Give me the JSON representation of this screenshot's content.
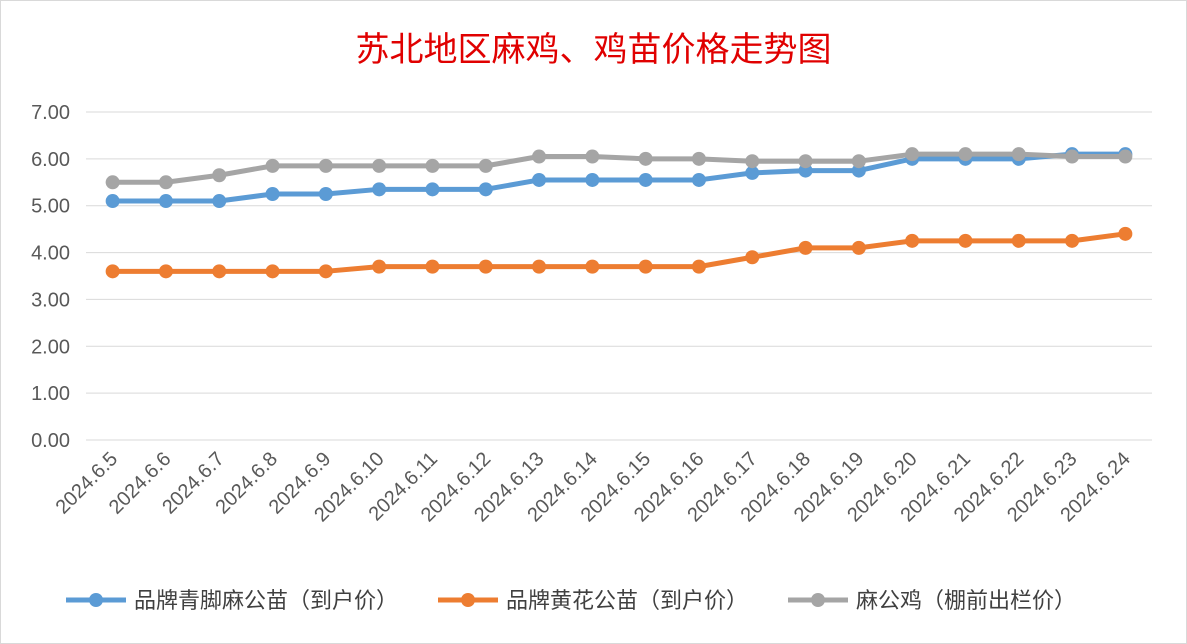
{
  "chart_data": {
    "type": "line",
    "title": "苏北地区麻鸡、鸡苗价格走势图",
    "categories": [
      "2024.6.5",
      "2024.6.6",
      "2024.6.7",
      "2024.6.8",
      "2024.6.9",
      "2024.6.10",
      "2024.6.11",
      "2024.6.12",
      "2024.6.13",
      "2024.6.14",
      "2024.6.15",
      "2024.6.16",
      "2024.6.17",
      "2024.6.18",
      "2024.6.19",
      "2024.6.20",
      "2024.6.21",
      "2024.6.22",
      "2024.6.23",
      "2024.6.24"
    ],
    "yticks": [
      "0.00",
      "1.00",
      "2.00",
      "3.00",
      "4.00",
      "5.00",
      "6.00",
      "7.00"
    ],
    "ylim": [
      0,
      7
    ],
    "grid": true,
    "legend_position": "bottom",
    "series": [
      {
        "name": "品牌青脚麻公苗（到户价）",
        "color": "#5b9bd5",
        "values": [
          5.1,
          5.1,
          5.1,
          5.25,
          5.25,
          5.35,
          5.35,
          5.35,
          5.55,
          5.55,
          5.55,
          5.55,
          5.7,
          5.75,
          5.75,
          6.0,
          6.0,
          6.0,
          6.1,
          6.1
        ]
      },
      {
        "name": "品牌黄花公苗（到户价）",
        "color": "#ed7d31",
        "values": [
          3.6,
          3.6,
          3.6,
          3.6,
          3.6,
          3.7,
          3.7,
          3.7,
          3.7,
          3.7,
          3.7,
          3.7,
          3.9,
          4.1,
          4.1,
          4.25,
          4.25,
          4.25,
          4.25,
          4.4
        ]
      },
      {
        "name": "麻公鸡（棚前出栏价）",
        "color": "#a5a5a5",
        "values": [
          5.5,
          5.5,
          5.65,
          5.85,
          5.85,
          5.85,
          5.85,
          5.85,
          6.05,
          6.05,
          6.0,
          6.0,
          5.95,
          5.95,
          5.95,
          6.1,
          6.1,
          6.1,
          6.05,
          6.05
        ]
      }
    ]
  }
}
